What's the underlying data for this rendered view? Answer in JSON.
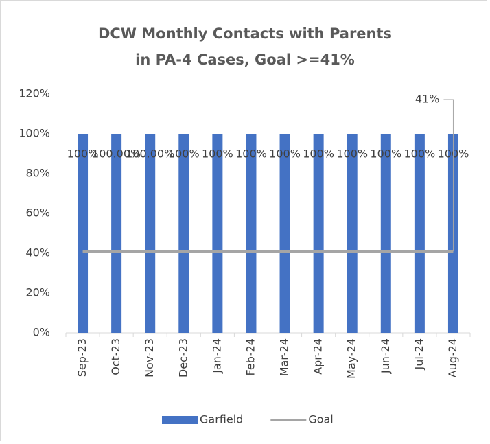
{
  "chart_data": {
    "type": "bar",
    "title": [
      "DCW Monthly Contacts with Parents",
      "in PA-4 Cases, Goal >=41%"
    ],
    "categories": [
      "Sep-23",
      "Oct-23",
      "Nov-23",
      "Dec-23",
      "Jan-24",
      "Feb-24",
      "Mar-24",
      "Apr-24",
      "May-24",
      "Jun-24",
      "Jul-24",
      "Aug-24"
    ],
    "series": [
      {
        "name": "Garfield",
        "type": "bar",
        "color": "#4472c4",
        "values": [
          100,
          100,
          100,
          100,
          100,
          100,
          100,
          100,
          100,
          100,
          100,
          100
        ],
        "value_labels": [
          "100%",
          "100.00%",
          "100.00%",
          "100%",
          "100%",
          "100%",
          "100%",
          "100%",
          "100%",
          "100%",
          "100%",
          "100%"
        ]
      },
      {
        "name": "Goal",
        "type": "line",
        "color": "#a5a5a5",
        "values": [
          41,
          41,
          41,
          41,
          41,
          41,
          41,
          41,
          41,
          41,
          41,
          41
        ],
        "value_labels": [
          null,
          null,
          null,
          null,
          null,
          null,
          null,
          null,
          null,
          null,
          null,
          "41%"
        ]
      }
    ],
    "ylim": [
      0,
      120
    ],
    "yticks": [
      {
        "value": 0,
        "label": "0%"
      },
      {
        "value": 20,
        "label": "20%"
      },
      {
        "value": 40,
        "label": "40%"
      },
      {
        "value": 60,
        "label": "60%"
      },
      {
        "value": 80,
        "label": "80%"
      },
      {
        "value": 100,
        "label": "100%"
      },
      {
        "value": 120,
        "label": "120%"
      }
    ],
    "legend": "bottom"
  }
}
